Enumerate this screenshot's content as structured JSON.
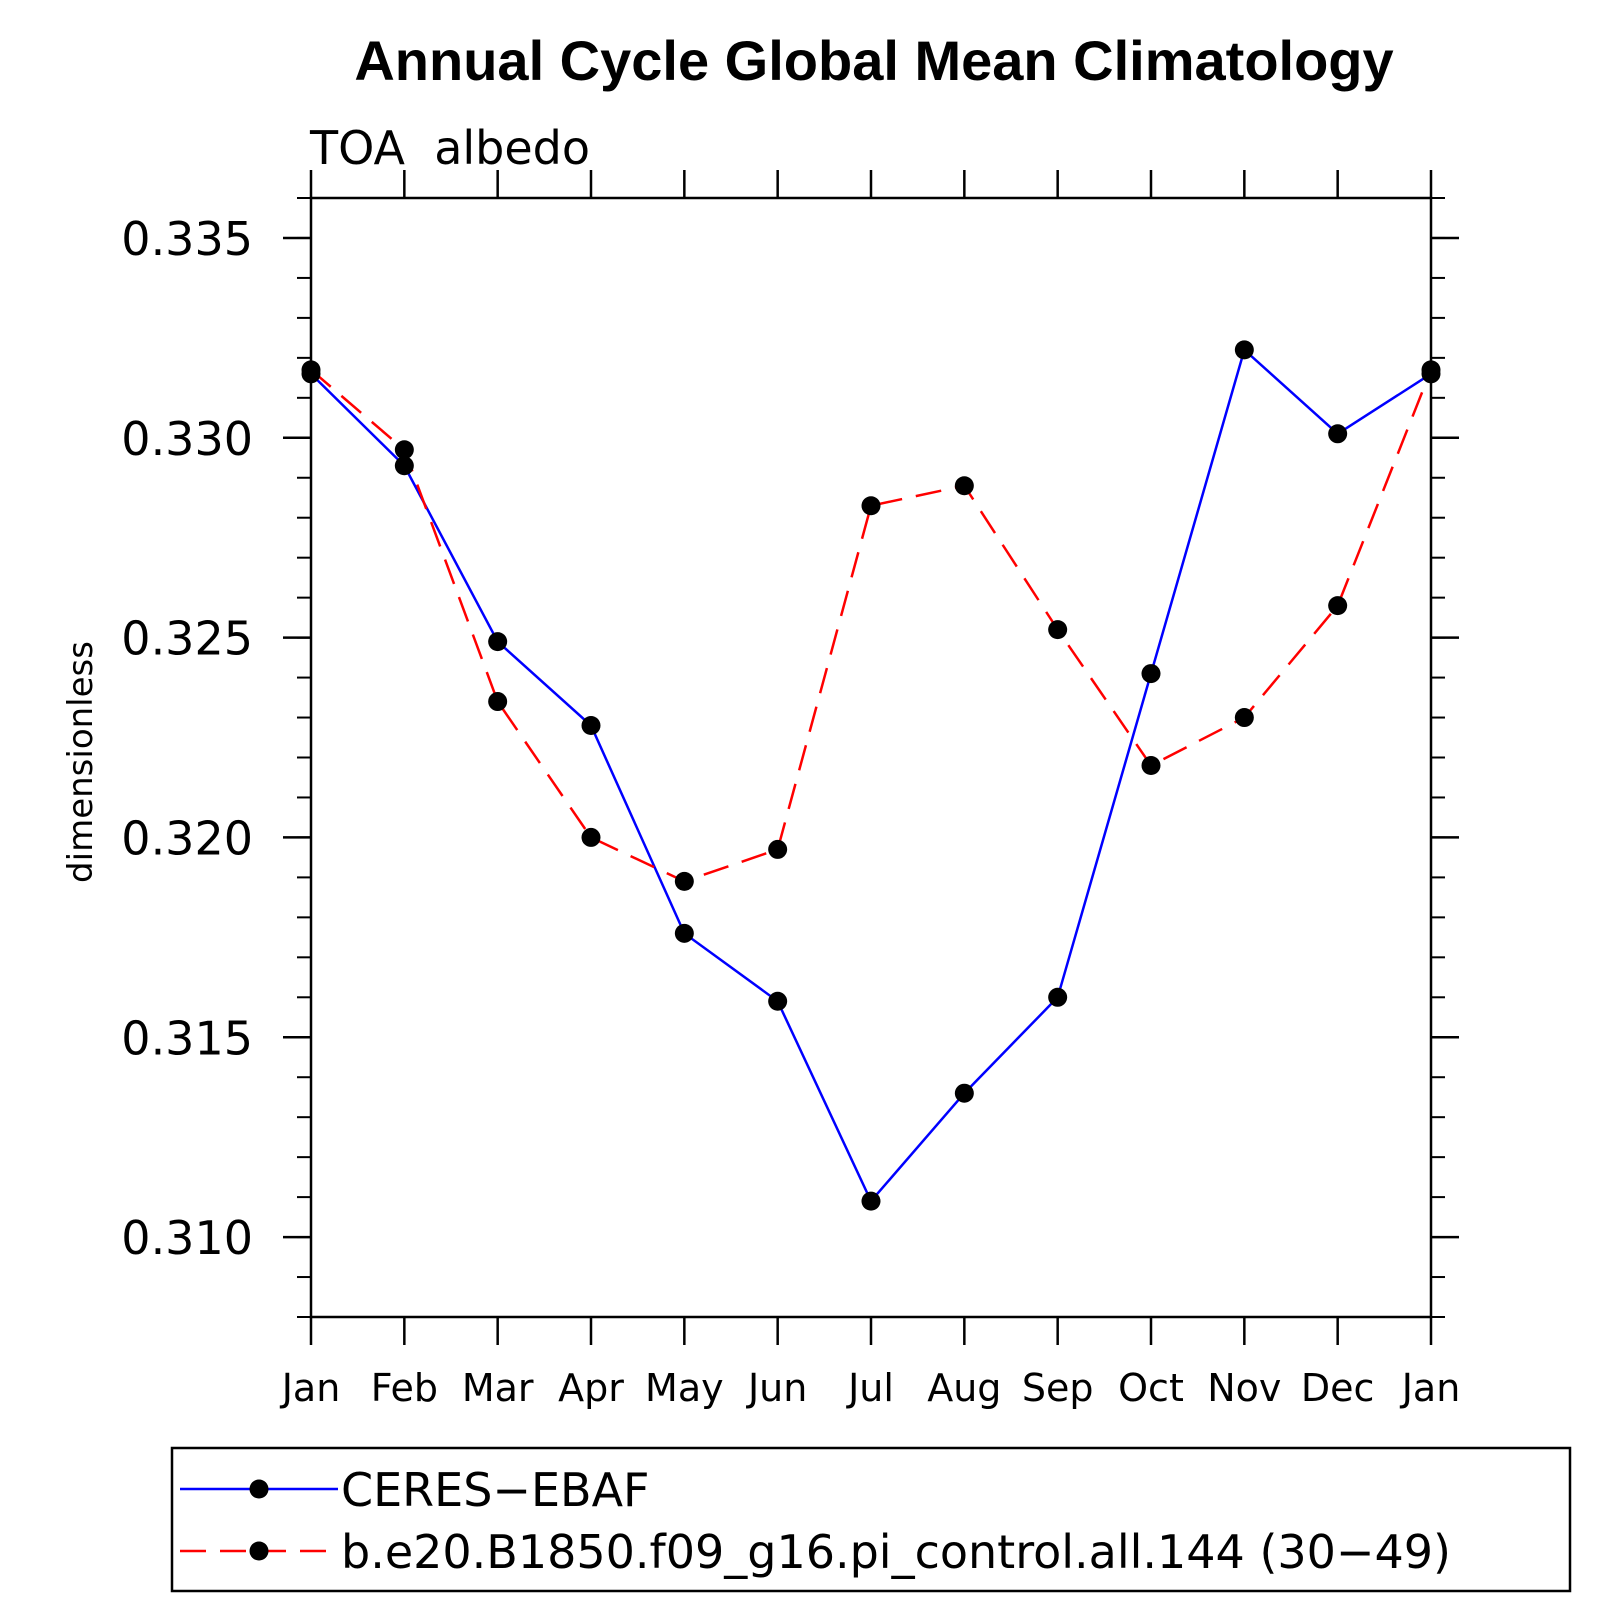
{
  "chart_data": {
    "type": "line",
    "title": "Annual Cycle Global Mean Climatology",
    "subtitle": "TOA  albedo",
    "xlabel": "",
    "ylabel": "dimensionless",
    "categories": [
      "Jan",
      "Feb",
      "Mar",
      "Apr",
      "May",
      "Jun",
      "Jul",
      "Aug",
      "Sep",
      "Oct",
      "Nov",
      "Dec",
      "Jan"
    ],
    "ylim": [
      0.308,
      0.336
    ],
    "yticks": [
      0.31,
      0.315,
      0.32,
      0.325,
      0.33,
      0.335
    ],
    "ytick_labels": [
      "0.310",
      "0.315",
      "0.320",
      "0.325",
      "0.330",
      "0.335"
    ],
    "grid": false,
    "legend_position": "bottom",
    "series": [
      {
        "name": "CERES−EBAF",
        "color": "#0000ff",
        "dash": "solid",
        "values": [
          0.3316,
          0.3293,
          0.3249,
          0.3228,
          0.3176,
          0.3159,
          0.3109,
          0.3136,
          0.316,
          0.3241,
          0.3322,
          0.3301,
          0.3316
        ]
      },
      {
        "name": "b.e20.B1850.f09_g16.pi_control.all.144 (30−49)",
        "color": "#ff0000",
        "dash": "dashed",
        "values": [
          0.3317,
          0.3297,
          0.3234,
          0.32,
          0.3189,
          0.3197,
          0.3283,
          0.3288,
          0.3252,
          0.3218,
          0.323,
          0.3258,
          0.3317
        ]
      }
    ]
  }
}
